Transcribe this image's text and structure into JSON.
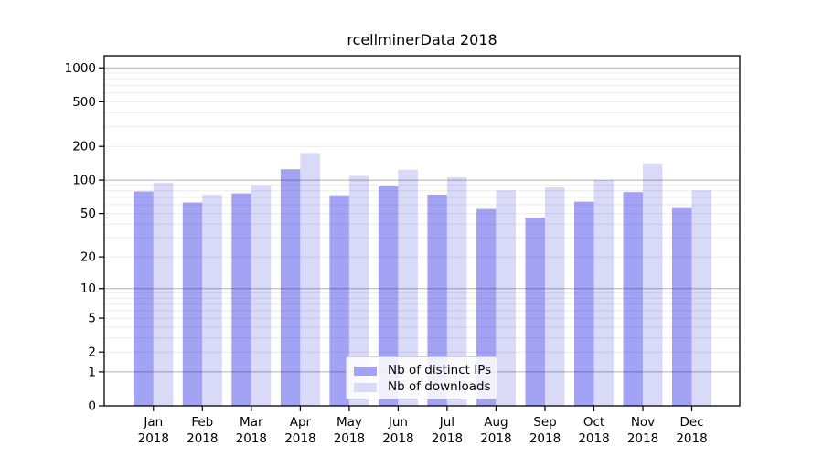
{
  "figure": {
    "background": "#ffffff"
  },
  "chart_data": {
    "type": "bar",
    "title": "rcellminerData 2018",
    "categories": [
      "Jan",
      "Feb",
      "Mar",
      "Apr",
      "May",
      "Jun",
      "Jul",
      "Aug",
      "Sep",
      "Oct",
      "Nov",
      "Dec"
    ],
    "category_sublabel": "2018",
    "series": [
      {
        "name": "Nb of distinct IPs",
        "color": "#a3a3f5",
        "values": [
          79,
          63,
          76,
          125,
          73,
          88,
          74,
          55,
          46,
          64,
          78,
          56
        ]
      },
      {
        "name": "Nb of downloads",
        "color": "#d9d9f8",
        "values": [
          95,
          74,
          90,
          175,
          109,
          124,
          106,
          81,
          86,
          100,
          141,
          81
        ]
      }
    ],
    "yscale": "log1p",
    "yticks": [
      0,
      1,
      2,
      5,
      10,
      20,
      50,
      100,
      200,
      500,
      1000
    ],
    "ylim": [
      0,
      1300
    ],
    "grid": true,
    "gridline_major_color": "rgba(0,0,0,0.30)",
    "gridline_minor_color": "rgba(0,0,0,0.08)",
    "axis_color": "#000000",
    "legend_position": "bottom-center"
  }
}
